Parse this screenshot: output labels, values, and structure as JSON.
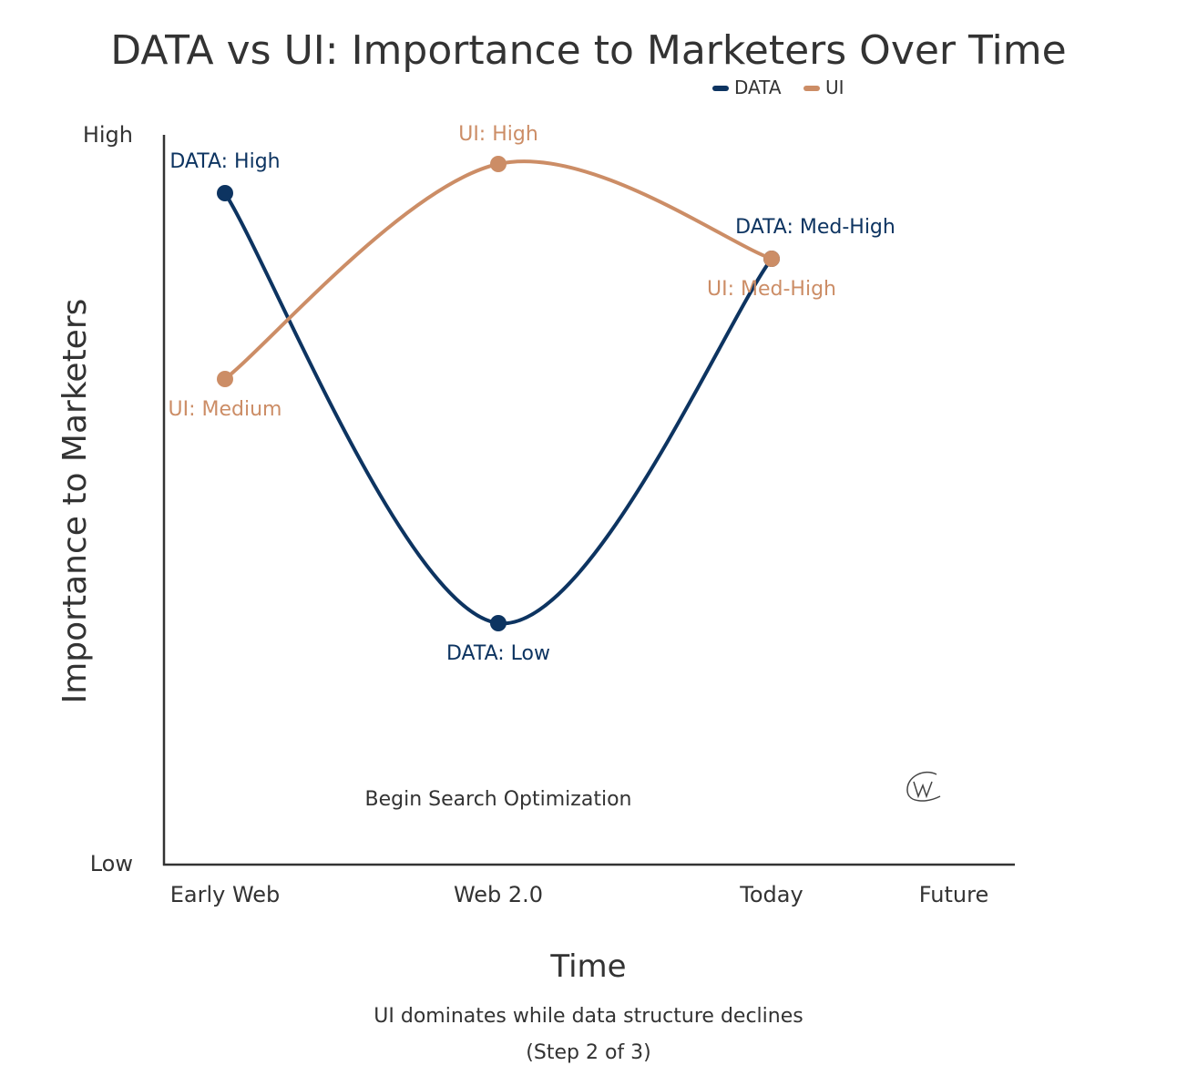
{
  "chart_data": {
    "type": "line",
    "title": "DATA vs UI: Importance to Marketers Over Time",
    "xlabel": "Time",
    "ylabel": "Importance to Marketers",
    "subtitle_lines": [
      "UI dominates while data structure declines",
      "(Step 2 of 3)"
    ],
    "x_ticks": [
      {
        "label": "Early Web",
        "x": 0.5
      },
      {
        "label": "Web 2.0",
        "x": 2
      },
      {
        "label": "Today",
        "x": 3.5
      },
      {
        "label": "Future",
        "x": 4.5
      }
    ],
    "y_ticks": [
      {
        "label": "Low",
        "y": 0
      },
      {
        "label": "High",
        "y": 10
      }
    ],
    "xlim": [
      0.165,
      4.83
    ],
    "ylim": [
      0,
      10
    ],
    "grid": false,
    "legend": {
      "placement": "top-right",
      "entries": [
        "DATA",
        "UI"
      ]
    },
    "series": [
      {
        "name": "DATA",
        "color": "#0d3461",
        "points": [
          {
            "x": 0.5,
            "y": 9.2,
            "label": "DATA: High"
          },
          {
            "x": 2,
            "y": 3.3,
            "label": "DATA: Low"
          },
          {
            "x": 3.5,
            "y": 8.3,
            "label": "DATA: Med-High"
          }
        ]
      },
      {
        "name": "UI",
        "color": "#cc8d66",
        "points": [
          {
            "x": 0.5,
            "y": 6.65,
            "label": "UI: Medium"
          },
          {
            "x": 2,
            "y": 9.6,
            "label": "UI: High"
          },
          {
            "x": 3.5,
            "y": 8.3,
            "label": "UI: Med-High"
          }
        ]
      }
    ],
    "annotations": [
      {
        "text": "Begin Search Optimization",
        "x": 2,
        "y": 0.9
      }
    ],
    "logo_text": "W"
  }
}
